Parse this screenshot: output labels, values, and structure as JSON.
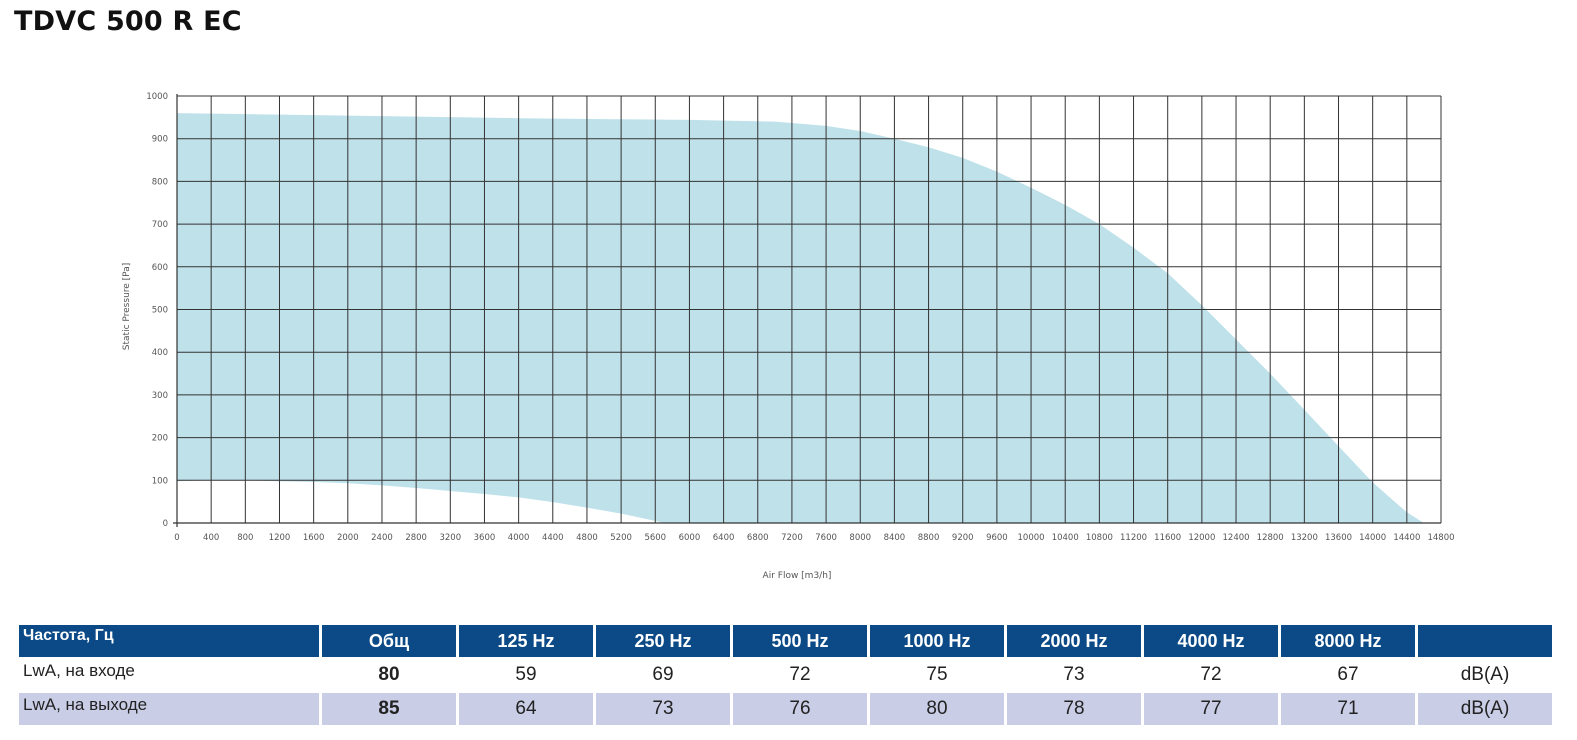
{
  "title": "TDVC 500 R EC",
  "chart_data": {
    "type": "area",
    "xlabel": "Air Flow [m3/h]",
    "ylabel": "Static Pressure [Pa]",
    "xlim": [
      0,
      14800
    ],
    "ylim": [
      0,
      1000
    ],
    "x_ticks": [
      0,
      400,
      800,
      1200,
      1600,
      2000,
      2400,
      2800,
      3200,
      3600,
      4000,
      4400,
      4800,
      5200,
      5600,
      6000,
      6400,
      6800,
      7200,
      7600,
      8000,
      8400,
      8800,
      9200,
      9600,
      10000,
      10400,
      10800,
      11200,
      11600,
      12000,
      12400,
      12800,
      13200,
      13600,
      14000,
      14400,
      14800
    ],
    "y_ticks": [
      0,
      100,
      200,
      300,
      400,
      500,
      600,
      700,
      800,
      900,
      1000
    ],
    "grid": true,
    "fill_color": "#bfe1ea",
    "upper_curve": [
      [
        0,
        960
      ],
      [
        1000,
        957
      ],
      [
        2000,
        954
      ],
      [
        3000,
        951
      ],
      [
        4000,
        948
      ],
      [
        5000,
        946
      ],
      [
        6000,
        944
      ],
      [
        7000,
        940
      ],
      [
        7600,
        930
      ],
      [
        8000,
        918
      ],
      [
        8400,
        900
      ],
      [
        8800,
        880
      ],
      [
        9200,
        855
      ],
      [
        9600,
        823
      ],
      [
        10000,
        785
      ],
      [
        10400,
        745
      ],
      [
        10800,
        700
      ],
      [
        11200,
        645
      ],
      [
        11600,
        585
      ],
      [
        12000,
        510
      ],
      [
        12400,
        430
      ],
      [
        12800,
        350
      ],
      [
        13200,
        265
      ],
      [
        13600,
        180
      ],
      [
        14000,
        95
      ],
      [
        14400,
        25
      ],
      [
        14600,
        0
      ]
    ],
    "lower_curve": [
      [
        0,
        98
      ],
      [
        400,
        100
      ],
      [
        800,
        100
      ],
      [
        1200,
        98
      ],
      [
        1600,
        96
      ],
      [
        2000,
        93
      ],
      [
        2400,
        88
      ],
      [
        2800,
        82
      ],
      [
        3200,
        75
      ],
      [
        3600,
        68
      ],
      [
        4000,
        60
      ],
      [
        4400,
        49
      ],
      [
        4800,
        36
      ],
      [
        5200,
        22
      ],
      [
        5600,
        5
      ],
      [
        5700,
        0
      ]
    ]
  },
  "table": {
    "headers": [
      "Частота, Гц",
      "Общ",
      "125 Hz",
      "250 Hz",
      "500 Hz",
      "1000 Hz",
      "2000 Hz",
      "4000 Hz",
      "8000 Hz",
      ""
    ],
    "rows": [
      {
        "label": "LwA, на входе",
        "total": "80",
        "values": [
          "59",
          "69",
          "72",
          "75",
          "73",
          "72",
          "67"
        ],
        "unit": "dB(A)"
      },
      {
        "label": "LwA, на выходе",
        "total": "85",
        "values": [
          "64",
          "73",
          "76",
          "80",
          "78",
          "77",
          "71"
        ],
        "unit": "dB(A)"
      }
    ]
  }
}
